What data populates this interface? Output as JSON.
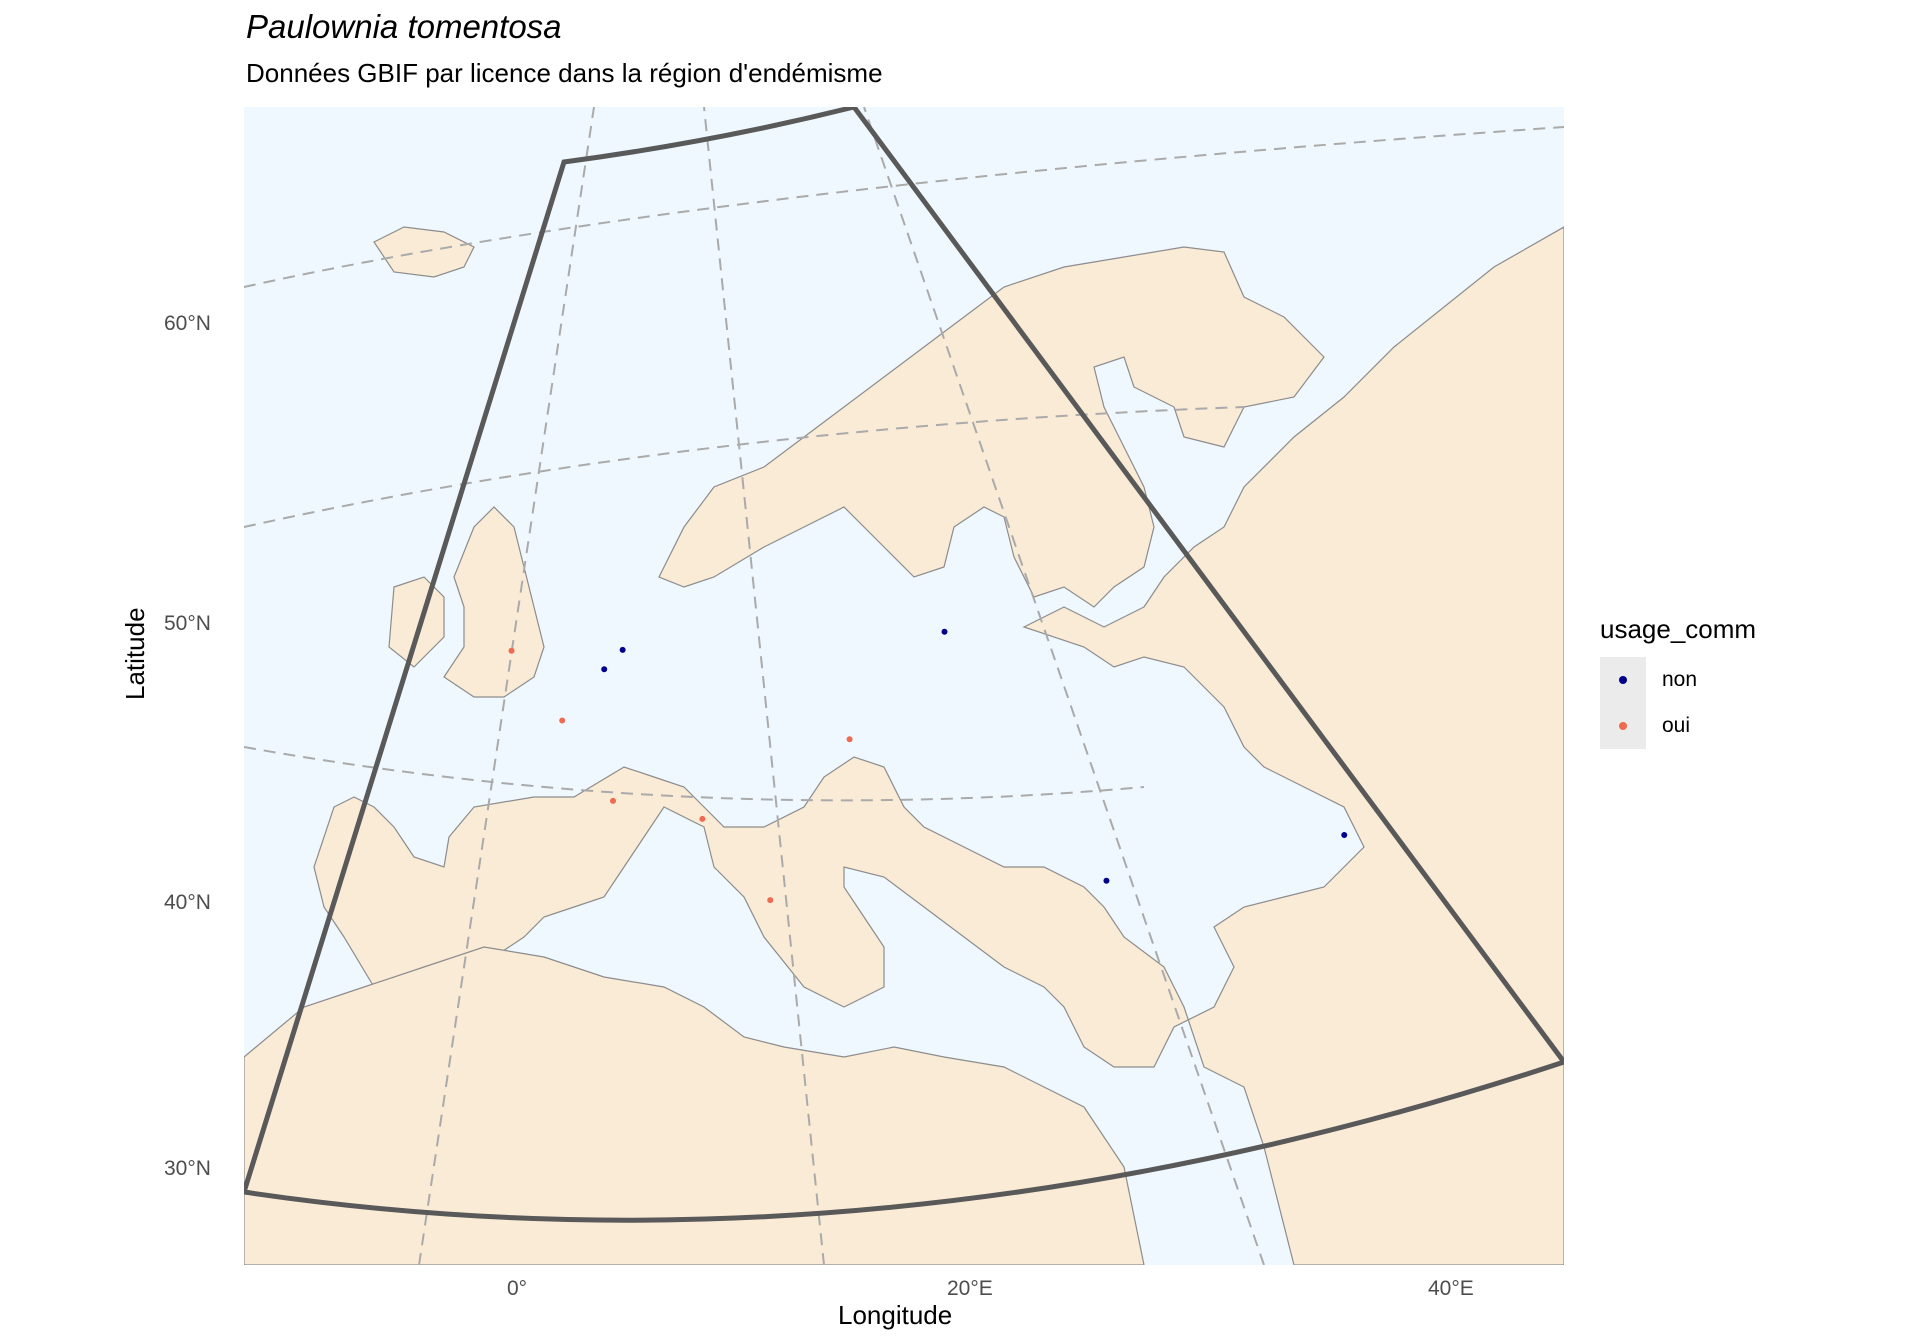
{
  "title": "Paulownia tomentosa",
  "subtitle": "Données GBIF par licence dans la région d'endémisme",
  "axes": {
    "xlabel": "Longitude",
    "ylabel": "Latitude",
    "xticks": [
      "0°",
      "20°E",
      "40°E"
    ],
    "yticks": [
      "60°N",
      "50°N",
      "40°N",
      "30°N"
    ]
  },
  "legend": {
    "title": "usage_comm",
    "items": [
      {
        "label": "non",
        "color": "#00008b"
      },
      {
        "label": "oui",
        "color": "#ee6a50"
      }
    ]
  },
  "colors": {
    "sea": "#f0f8ff",
    "land": "#faebd7",
    "border": "#8c8c8c",
    "graticule": "#aaaaaa",
    "region_outline": "#595959"
  },
  "map_data": {
    "region": {
      "lon_min": -10,
      "lon_max": 40,
      "lat_min": 30,
      "lat_max": 60
    },
    "occurrences": [
      {
        "usage_comm": "non",
        "lon": 5.3,
        "lat": 52.1
      },
      {
        "usage_comm": "non",
        "lon": 4.4,
        "lat": 51.2
      },
      {
        "usage_comm": "oui",
        "lon": 2.35,
        "lat": 48.85
      },
      {
        "usage_comm": "oui",
        "lon": 4.83,
        "lat": 45.76
      },
      {
        "usage_comm": "oui",
        "lon": 9.19,
        "lat": 45.46
      },
      {
        "usage_comm": "oui",
        "lon": 12.5,
        "lat": 41.9
      },
      {
        "usage_comm": "oui",
        "lon": 16.37,
        "lat": 48.2
      },
      {
        "usage_comm": "oui",
        "lon": -0.12,
        "lat": 51.5
      },
      {
        "usage_comm": "non",
        "lon": 21.0,
        "lat": 52.2
      },
      {
        "usage_comm": "non",
        "lon": 28.9,
        "lat": 41.0
      },
      {
        "usage_comm": "non",
        "lon": 40.5,
        "lat": 41.7
      }
    ]
  }
}
